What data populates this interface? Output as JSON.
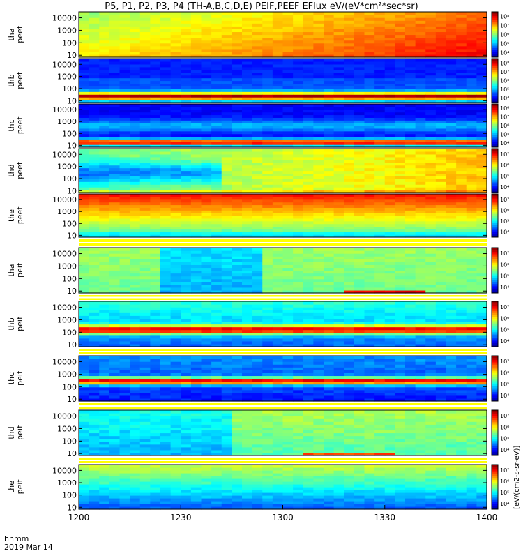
{
  "title": "P5, P1, P2, P3, P4 (TH-A,B,C,D,E) PEIF,PEEF EFlux eV/(eV*cm²*sec*sr)",
  "x_axis": {
    "label_line1": "hhmm",
    "label_line2": "2019 Mar 14",
    "ticks": [
      "1200",
      "1230",
      "1300",
      "1330",
      "1400"
    ]
  },
  "colorbar_label": "[eV/(cm2-s-sr-eV)]",
  "y_ticks": [
    "10",
    "100",
    "1000",
    "10000"
  ],
  "chart_data": {
    "type": "heatmap",
    "title": "P5, P1, P2, P3, P4 (TH-A,B,C,D,E) PEIF,PEEF EFlux eV/(eV*cm²*sec*sr)",
    "x": {
      "start": "12:00",
      "end": "14:00",
      "unit": "hhmm",
      "ticks": [
        "1200",
        "1230",
        "1300",
        "1330",
        "1400"
      ]
    },
    "y": {
      "scale": "log",
      "range": [
        7,
        30000
      ],
      "unit": "eV",
      "ticks": [
        10,
        100,
        1000,
        10000
      ]
    },
    "colorbar_label": "[eV/(cm2-s-sr-eV)]",
    "panels": [
      {
        "label": "tha\npeef",
        "colorbar_ticks": [
          "10⁴",
          "10⁵",
          "10⁶",
          "10⁷",
          "10⁸"
        ]
      },
      {
        "label": "thb\npeef",
        "colorbar_ticks": [
          "10⁴",
          "10⁵",
          "10⁶",
          "10⁷",
          "10⁸"
        ]
      },
      {
        "label": "thc\npeef",
        "colorbar_ticks": [
          "10⁴",
          "10⁵",
          "10⁶",
          "10⁷",
          "10⁸"
        ]
      },
      {
        "label": "thd\npeef",
        "colorbar_ticks": [
          "10⁴",
          "10⁵",
          "10⁶",
          "10⁷"
        ]
      },
      {
        "label": "the\npeef",
        "colorbar_ticks": [
          "10⁴",
          "10⁵",
          "10⁶",
          "10⁷"
        ]
      },
      {
        "label": "tha\npeif",
        "colorbar_ticks": [
          "10⁴",
          "10⁵",
          "10⁶",
          "10⁷"
        ]
      },
      {
        "label": "thb\npeif",
        "colorbar_ticks": [
          "10⁴",
          "10⁵",
          "10⁶",
          "10⁷"
        ]
      },
      {
        "label": "thc\npeif",
        "colorbar_ticks": [
          "10⁴",
          "10⁵",
          "10⁶",
          "10⁷"
        ]
      },
      {
        "label": "thd\npeif",
        "colorbar_ticks": [
          "10⁴",
          "10⁵",
          "10⁶",
          "10⁷"
        ]
      },
      {
        "label": "the\npeif",
        "colorbar_ticks": [
          "10⁴",
          "10⁵",
          "10⁶",
          "10⁷"
        ]
      }
    ]
  }
}
